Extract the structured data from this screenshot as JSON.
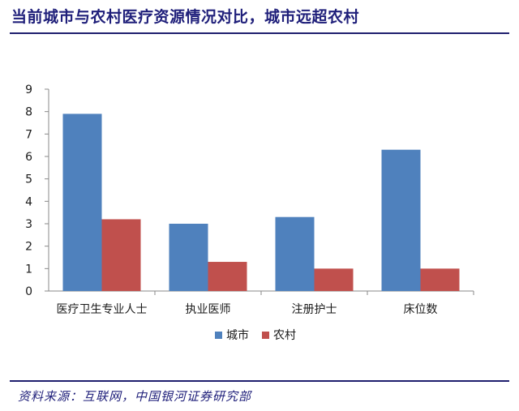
{
  "title": "当前城市与农村医疗资源情况对比，城市远超农村",
  "source": "资料来源：互联网，中国银河证券研究部",
  "colors": {
    "city": "#4f81bd",
    "rural": "#c0504d",
    "axis": "#888888",
    "rule": "#1f1f6e",
    "title": "#1f1f7a"
  },
  "chart_data": {
    "type": "bar",
    "title": "",
    "xlabel": "",
    "ylabel": "",
    "categories": [
      "医疗卫生专业人士",
      "执业医师",
      "注册护士",
      "床位数"
    ],
    "series": [
      {
        "name": "城市",
        "values": [
          7.9,
          3.0,
          3.3,
          6.3
        ]
      },
      {
        "name": "农村",
        "values": [
          3.2,
          1.3,
          1.0,
          1.0
        ]
      }
    ],
    "ylim": [
      0,
      9
    ],
    "yticks": [
      0,
      1,
      2,
      3,
      4,
      5,
      6,
      7,
      8,
      9
    ],
    "grid": false,
    "legend": "bottom-center"
  }
}
